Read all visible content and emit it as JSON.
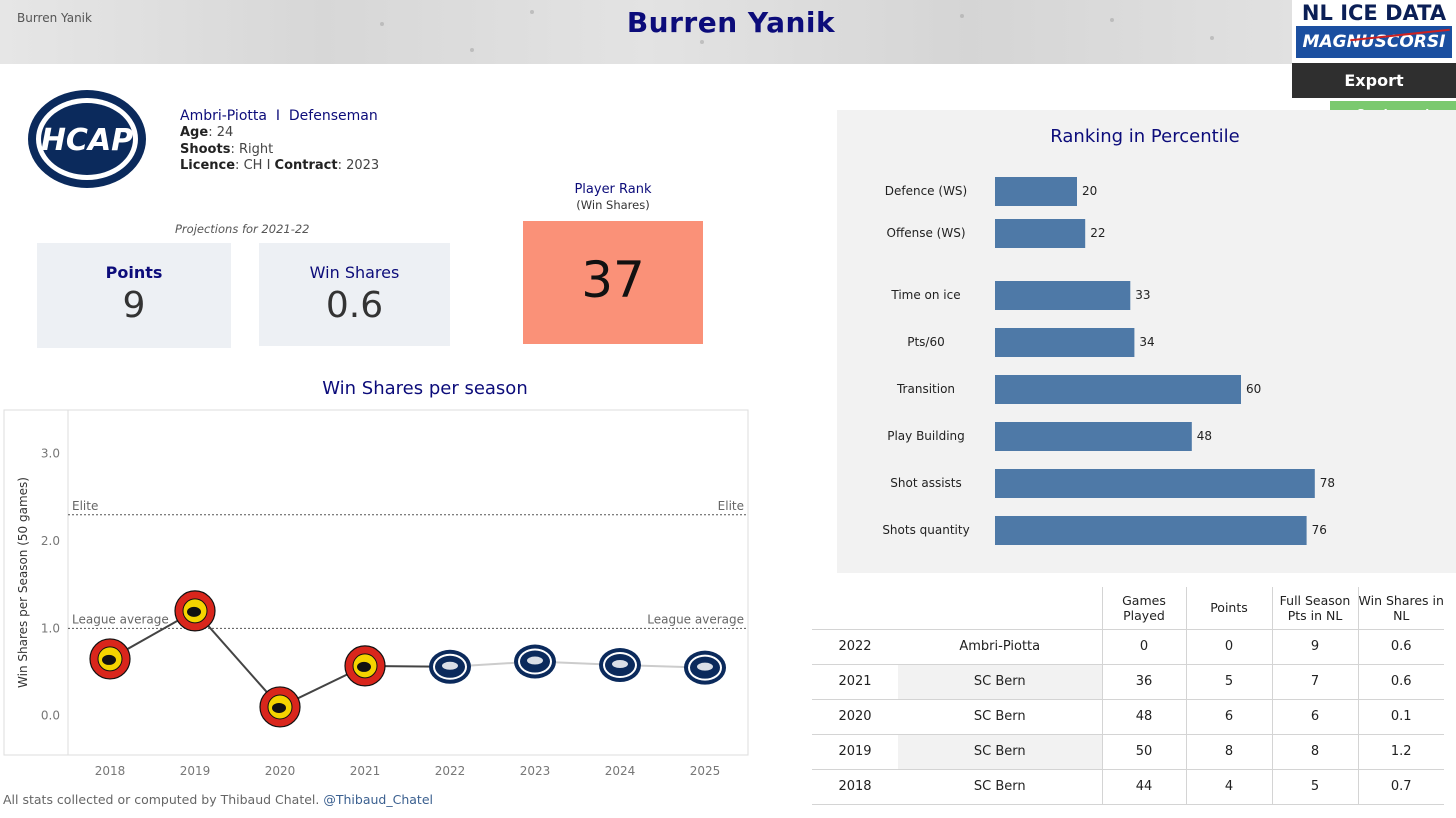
{
  "header": {
    "player_small": "Burren Yanik",
    "title": "Burren Yanik",
    "brand_line1": "NL ICE DATA",
    "brand_line2": "MAGNUSCORSI",
    "export_label": "Export",
    "legend_label": "See Legend"
  },
  "player": {
    "team": "Ambri-Piotta",
    "separator": "I",
    "position": "Defenseman",
    "age_label": "Age",
    "age": "24",
    "shoots_label": "Shoots",
    "shoots": "Right",
    "licence_label": "Licence",
    "licence": "CH",
    "contract_label": "Contract",
    "contract": "2023",
    "logo_text": "HCAP"
  },
  "projections": {
    "label": "Projections for 2021-22",
    "points_label": "Points",
    "points": "9",
    "ws_label": "Win Shares",
    "ws": "0.6"
  },
  "rank": {
    "title": "Player Rank",
    "subtitle": "(Win Shares)",
    "value": "37",
    "color": "#fa9178"
  },
  "ws_chart": {
    "title": "Win Shares per season"
  },
  "ranking": {
    "title": "Ranking in Percentile"
  },
  "chart_data": [
    {
      "type": "line",
      "title": "Win Shares per season",
      "ylabel": "Win Shares per Season (50 games)",
      "xlabel": "",
      "x": [
        "2018",
        "2019",
        "2020",
        "2021",
        "2022",
        "2023",
        "2024",
        "2025"
      ],
      "values": [
        0.65,
        1.2,
        0.1,
        0.57,
        0.56,
        0.62,
        0.58,
        0.55
      ],
      "team_markers": [
        "SC Bern",
        "SC Bern",
        "SC Bern",
        "SC Bern",
        "Ambri-Piotta",
        "Ambri-Piotta",
        "Ambri-Piotta",
        "Ambri-Piotta"
      ],
      "marker_colors": {
        "SC Bern": "#d9261c",
        "Ambri-Piotta": "#0b2a5c"
      },
      "ylim": [
        -0.45,
        3.5
      ],
      "yticks": [
        0.0,
        1.0,
        2.0,
        3.0
      ],
      "ytick_labels": [
        "0.0",
        "1.0",
        "2.0",
        "3.0"
      ],
      "reference_lines": [
        {
          "label": "Elite",
          "value": 2.3
        },
        {
          "label": "League average",
          "value": 1.0
        }
      ],
      "line_color_past": "#444444",
      "line_color_projection": "#cccccc",
      "grid": false
    },
    {
      "type": "bar",
      "orientation": "horizontal",
      "title": "Ranking in Percentile",
      "categories": [
        "Defence (WS)",
        "Offense (WS)",
        "Time on ice",
        "Pts/60",
        "Transition",
        "Play Building",
        "Shot assists",
        "Shots quantity"
      ],
      "values": [
        20,
        22,
        33,
        34,
        60,
        48,
        78,
        76
      ],
      "xlim": [
        0,
        100
      ],
      "bar_color": "#4e79a7",
      "grid": false
    }
  ],
  "table": {
    "headers": [
      "",
      "",
      "Games Played",
      "Points",
      "Full Season Pts in NL",
      "Win Shares in NL"
    ],
    "rows": [
      [
        "2022",
        "Ambri-Piotta",
        "0",
        "0",
        "9",
        "0.6"
      ],
      [
        "2021",
        "SC Bern",
        "36",
        "5",
        "7",
        "0.6"
      ],
      [
        "2020",
        "SC Bern",
        "48",
        "6",
        "6",
        "0.1"
      ],
      [
        "2019",
        "SC Bern",
        "50",
        "8",
        "8",
        "1.2"
      ],
      [
        "2018",
        "SC Bern",
        "44",
        "4",
        "5",
        "0.7"
      ]
    ]
  },
  "footer": {
    "text": "All stats collected or computed by Thibaud Chatel.",
    "handle": "@Thibaud_Chatel"
  }
}
